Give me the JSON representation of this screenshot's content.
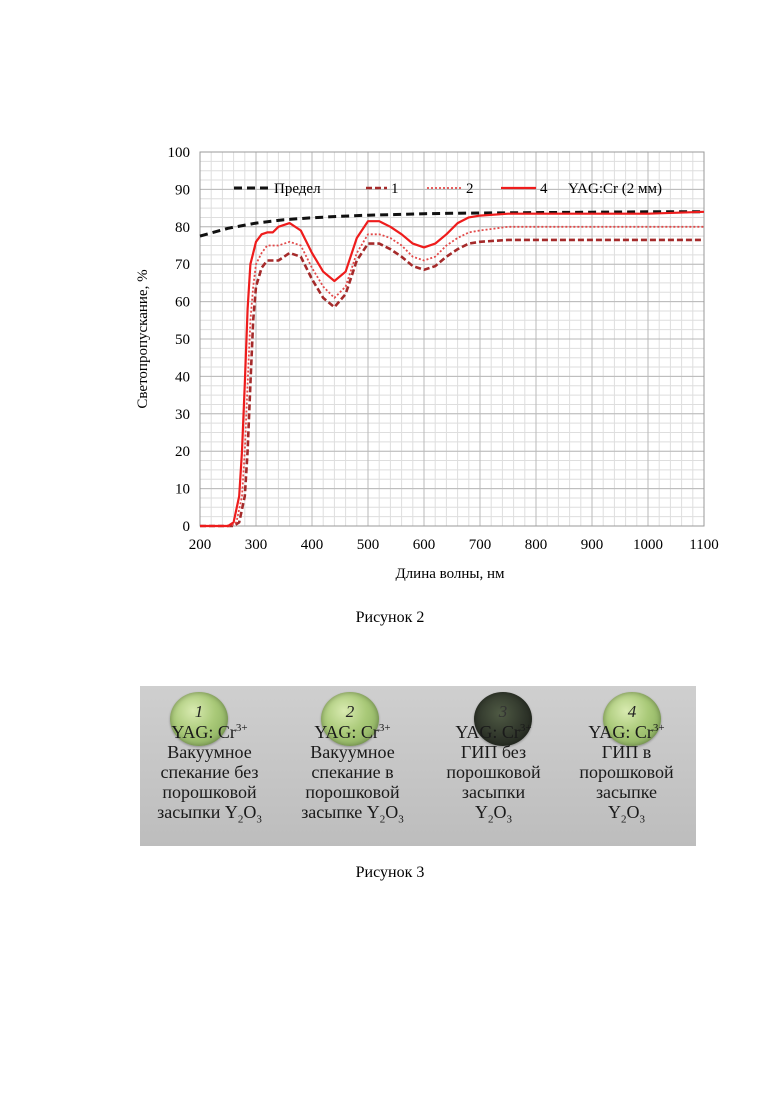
{
  "chart_data": {
    "type": "line",
    "xlabel": "Длина волны, нм",
    "ylabel": "Светопропускание, %",
    "xlim": [
      200,
      1100
    ],
    "ylim": [
      0,
      100
    ],
    "x_ticks": [
      "200",
      "300",
      "400",
      "500",
      "600",
      "700",
      "800",
      "900",
      "1000",
      "1100"
    ],
    "y_ticks": [
      "0",
      "10",
      "20",
      "30",
      "40",
      "50",
      "60",
      "70",
      "80",
      "90",
      "100"
    ],
    "grid": true,
    "legend_placement": "top",
    "legend_note": "YAG:Cr (2 мм)",
    "series": [
      {
        "name": "Предел",
        "color": "#111111",
        "style": "dashed-thick",
        "x": [
          200,
          250,
          300,
          350,
          400,
          450,
          500,
          550,
          600,
          650,
          700,
          800,
          900,
          1000,
          1100
        ],
        "y": [
          77.5,
          79.6,
          81.0,
          81.9,
          82.4,
          82.8,
          83.1,
          83.3,
          83.5,
          83.6,
          83.7,
          83.8,
          83.9,
          84.0,
          84.0
        ]
      },
      {
        "name": "1",
        "color": "#a52a2a",
        "style": "dashed",
        "x": [
          200,
          260,
          270,
          280,
          285,
          290,
          295,
          300,
          310,
          320,
          340,
          360,
          380,
          400,
          420,
          440,
          460,
          480,
          500,
          520,
          540,
          560,
          580,
          600,
          620,
          640,
          660,
          680,
          700,
          750,
          800,
          900,
          1000,
          1100
        ],
        "y": [
          0,
          0,
          1,
          8,
          20,
          38,
          55,
          64,
          69,
          71,
          71,
          73,
          72,
          66,
          61,
          58.5,
          62,
          71,
          75.5,
          75.5,
          74,
          72,
          69.5,
          68.5,
          69.5,
          72,
          74,
          75.5,
          76,
          76.5,
          76.5,
          76.5,
          76.5,
          76.5
        ]
      },
      {
        "name": "2",
        "color": "#e24a4a",
        "style": "dotted",
        "x": [
          200,
          255,
          265,
          275,
          280,
          285,
          290,
          295,
          300,
          310,
          320,
          340,
          360,
          380,
          400,
          420,
          440,
          460,
          480,
          500,
          520,
          540,
          560,
          580,
          600,
          620,
          640,
          660,
          680,
          700,
          750,
          800,
          900,
          1000,
          1100
        ],
        "y": [
          0,
          0,
          1,
          8,
          20,
          38,
          55,
          64,
          70,
          73,
          75,
          75,
          76,
          75,
          69,
          64,
          61,
          64,
          73,
          78,
          78,
          77,
          75,
          72,
          71,
          72,
          75,
          77,
          78.5,
          79,
          80,
          80,
          80,
          80,
          80
        ]
      },
      {
        "name": "4",
        "color": "#ee1c1c",
        "style": "solid",
        "x": [
          200,
          250,
          260,
          270,
          275,
          280,
          285,
          290,
          300,
          310,
          320,
          330,
          340,
          350,
          360,
          380,
          400,
          420,
          440,
          460,
          480,
          500,
          520,
          540,
          560,
          580,
          600,
          620,
          640,
          660,
          680,
          700,
          750,
          800,
          900,
          1000,
          1100
        ],
        "y": [
          0,
          0,
          1,
          8,
          20,
          38,
          58,
          70,
          76,
          78,
          78.5,
          78.5,
          80,
          80.5,
          81,
          79,
          73,
          68,
          65.5,
          68,
          77,
          81.5,
          81.5,
          80,
          78,
          75.5,
          74.5,
          75.5,
          78,
          81,
          82.5,
          83,
          83.5,
          83.5,
          83.5,
          83.5,
          84
        ]
      }
    ]
  },
  "figure2": {
    "caption": "Рисунок 2"
  },
  "figure3": {
    "caption": "Рисунок 3",
    "samples": [
      {
        "number": "1",
        "line1": "YAG: Cr",
        "sup": "3+",
        "line2": "Вакуумное",
        "line3": "спекание без",
        "line4": "порошковой",
        "line5": "засыпки Y",
        "sub1": "2",
        "o": "O",
        "sub2": "3",
        "disk": "light"
      },
      {
        "number": "2",
        "line1": "YAG: Cr",
        "sup": "3+",
        "line2": "Вакуумное",
        "line3": "спекание в",
        "line4": "порошковой",
        "line5": "засыпке Y",
        "sub1": "2",
        "o": "O",
        "sub2": "3",
        "disk": "light"
      },
      {
        "number": "3",
        "line1": "YAG: Cr",
        "sup": "3+",
        "line2": "ГИП без",
        "line3": "порошковой",
        "line4": "засыпки",
        "line5": "Y",
        "sub1": "2",
        "o": "O",
        "sub2": "3",
        "disk": "dark"
      },
      {
        "number": "4",
        "line1": "YAG: Cr",
        "sup": "3+",
        "line2": "ГИП в",
        "line3": "порошковой",
        "line4": "засыпке",
        "line5": "Y",
        "sub1": "2",
        "o": "O",
        "sub2": "3",
        "disk": "light"
      }
    ]
  }
}
